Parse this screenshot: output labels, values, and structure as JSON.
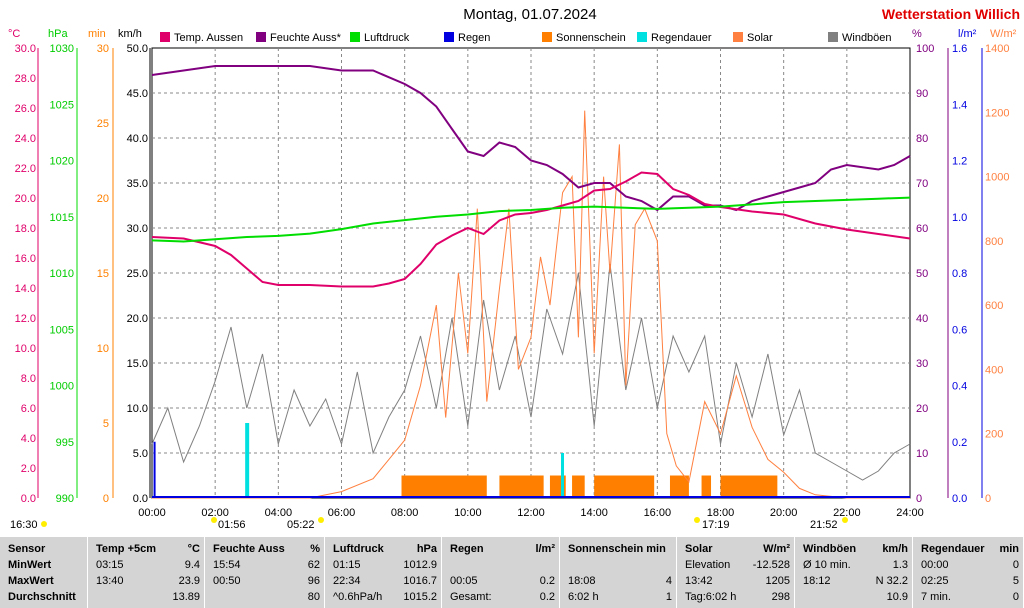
{
  "title": "Montag, 01.07.2024",
  "brand": "Wetterstation Willich",
  "units": {
    "temp": "°C",
    "press": "hPa",
    "min": "min",
    "wind": "km/h",
    "pct": "%",
    "rain": "l/m²",
    "solar": "W/m²"
  },
  "legend": [
    {
      "label": "Temp. Aussen",
      "color": "#e0006a"
    },
    {
      "label": "Feuchte Auss*",
      "color": "#800080"
    },
    {
      "label": "Luftdruck",
      "color": "#00dd00"
    },
    {
      "label": "Regen",
      "color": "#0000e0"
    },
    {
      "label": "Sonnenschein",
      "color": "#ff8000"
    },
    {
      "label": "Regendauer",
      "color": "#00e0e0"
    },
    {
      "label": "Solar",
      "color": "#ff8040"
    },
    {
      "label": "Windböen",
      "color": "#808080"
    }
  ],
  "axes": {
    "temp": [
      "30.0",
      "28.0",
      "26.0",
      "24.0",
      "22.0",
      "20.0",
      "18.0",
      "16.0",
      "14.0",
      "12.0",
      "10.0",
      "8.0",
      "6.0",
      "4.0",
      "2.0",
      "0.0"
    ],
    "press": [
      "1030",
      "1025",
      "1020",
      "1015",
      "1010",
      "1005",
      "1000",
      "995",
      "990"
    ],
    "min": [
      "30",
      "25",
      "20",
      "15",
      "10",
      "5",
      "0"
    ],
    "wind": [
      "50.0",
      "45.0",
      "40.0",
      "35.0",
      "30.0",
      "25.0",
      "20.0",
      "15.0",
      "10.0",
      "5.0",
      "0.0"
    ],
    "pct": [
      "100",
      "90",
      "80",
      "70",
      "60",
      "50",
      "40",
      "30",
      "20",
      "10",
      "0"
    ],
    "rain": [
      "1.6",
      "1.4",
      "1.2",
      "1.0",
      "0.8",
      "0.6",
      "0.4",
      "0.2",
      "0.0"
    ],
    "solar": [
      "1400",
      "1200",
      "1000",
      "800",
      "600",
      "400",
      "200",
      "0"
    ],
    "x": [
      "00:00",
      "02:00",
      "04:00",
      "06:00",
      "08:00",
      "10:00",
      "12:00",
      "14:00",
      "16:00",
      "18:00",
      "20:00",
      "22:00",
      "24:00"
    ]
  },
  "markers": {
    "left": "16:30",
    "m1": "01:56",
    "m2": "05:22",
    "m3": "17:19",
    "m4": "21:52"
  },
  "chart_data": {
    "type": "line",
    "x_range": [
      0,
      24
    ],
    "series": [
      {
        "name": "Temp. Aussen",
        "unit": "°C",
        "color": "#e0006a",
        "x": [
          0,
          1,
          2,
          2.5,
          3,
          3.5,
          4,
          5,
          6,
          7,
          7.5,
          8,
          8.5,
          9,
          9.5,
          10,
          10.5,
          11,
          11.5,
          12,
          12.5,
          13,
          13.5,
          14,
          14.5,
          15,
          15.5,
          16,
          16.5,
          17,
          17.5,
          18,
          19,
          20,
          21,
          22,
          23,
          24
        ],
        "y": [
          17.4,
          17.3,
          16.8,
          16.2,
          15.3,
          14.4,
          14.2,
          14.2,
          14.1,
          14.1,
          14.3,
          14.6,
          15.6,
          16.9,
          17.5,
          18.0,
          17.6,
          18.5,
          18.9,
          19.0,
          19.2,
          19.5,
          19.8,
          20.5,
          20.6,
          21.1,
          21.7,
          21.6,
          20.6,
          20.2,
          19.6,
          19.4,
          19.1,
          18.9,
          18.3,
          17.9,
          17.6,
          17.3
        ]
      },
      {
        "name": "Feuchte Auss*",
        "unit": "%",
        "color": "#800080",
        "x": [
          0,
          1,
          2,
          3,
          4,
          5,
          6,
          7,
          8,
          8.5,
          9,
          9.5,
          10,
          10.5,
          11,
          11.5,
          12,
          12.5,
          13,
          13.5,
          14,
          14.5,
          15,
          15.5,
          16,
          16.5,
          17,
          17.5,
          18,
          18.5,
          19,
          20,
          20.5,
          21,
          21.5,
          22,
          23,
          23.5,
          24
        ],
        "y": [
          94,
          95,
          96,
          96,
          96,
          96,
          95,
          95,
          92,
          90,
          87,
          82,
          77,
          76,
          79,
          78,
          75,
          74,
          72,
          69,
          70,
          70,
          67,
          66,
          64,
          67,
          67,
          65,
          65,
          64,
          66,
          68,
          69,
          70,
          73,
          74,
          73,
          74,
          76
        ]
      },
      {
        "name": "Luftdruck",
        "unit": "hPa",
        "color": "#00dd00",
        "x": [
          0,
          1,
          2,
          3,
          4,
          5,
          6,
          7,
          8,
          9,
          10,
          11,
          12,
          13,
          14,
          15,
          16,
          17,
          18,
          19,
          20,
          21,
          22,
          23,
          24
        ],
        "y": [
          1012.9,
          1012.8,
          1013.0,
          1013.2,
          1013.3,
          1013.5,
          1013.9,
          1014.4,
          1014.7,
          1015.0,
          1015.2,
          1015.5,
          1015.6,
          1015.8,
          1015.9,
          1015.8,
          1015.7,
          1015.8,
          1015.9,
          1016.1,
          1016.3,
          1016.4,
          1016.5,
          1016.6,
          1016.7
        ]
      },
      {
        "name": "Solar",
        "unit": "W/m²",
        "color": "#ff8040",
        "x": [
          0,
          5,
          6,
          7,
          7.5,
          8,
          8.5,
          9,
          9.3,
          9.7,
          10,
          10.3,
          10.6,
          11,
          11.3,
          11.6,
          12,
          12.3,
          12.6,
          13,
          13.3,
          13.5,
          13.7,
          14,
          14.3,
          14.5,
          14.8,
          15,
          15.3,
          15.6,
          16,
          16.3,
          16.6,
          17,
          17.5,
          18,
          18.5,
          19,
          19.5,
          20,
          20.5,
          21,
          22,
          24
        ],
        "y": [
          0,
          0,
          20,
          60,
          120,
          180,
          350,
          600,
          250,
          700,
          450,
          900,
          300,
          650,
          900,
          400,
          500,
          750,
          600,
          950,
          1000,
          500,
          1205,
          450,
          1000,
          700,
          1100,
          350,
          850,
          900,
          800,
          200,
          100,
          50,
          300,
          200,
          380,
          220,
          120,
          80,
          30,
          10,
          0,
          0
        ]
      },
      {
        "name": "Windböen",
        "unit": "km/h",
        "color": "#808080",
        "x": [
          0,
          0.5,
          1,
          1.5,
          2,
          2.5,
          3,
          3.5,
          4,
          4.5,
          5,
          5.5,
          6,
          6.5,
          7,
          7.5,
          8,
          8.5,
          9,
          9.5,
          10,
          10.5,
          11,
          11.5,
          12,
          12.5,
          13,
          13.5,
          14,
          14.5,
          15,
          15.5,
          16,
          16.5,
          17,
          17.5,
          18,
          18.5,
          19,
          19.5,
          20,
          20.5,
          21,
          21.5,
          22,
          22.5,
          23,
          23.5,
          24
        ],
        "y": [
          6,
          10,
          4,
          8,
          13,
          19,
          10,
          16,
          6,
          12,
          8,
          11,
          6,
          14,
          5,
          9,
          12,
          18,
          10,
          20,
          8,
          22,
          12,
          18,
          9,
          21,
          16,
          25,
          8,
          26,
          12,
          20,
          10,
          18,
          14,
          18,
          6,
          15,
          9,
          16,
          7,
          12,
          5,
          4,
          3,
          2,
          3,
          5,
          6
        ]
      },
      {
        "name": "Sonnenschein",
        "unit": "min",
        "color": "#ff8000",
        "bars": [
          [
            7.9,
            10.6
          ],
          [
            11,
            12.4
          ],
          [
            12.6,
            13.1
          ],
          [
            13.3,
            13.7
          ],
          [
            14,
            15.9
          ],
          [
            16.4,
            17.0
          ],
          [
            17.4,
            17.7
          ],
          [
            18,
            19.8
          ]
        ],
        "value": 1.5
      }
    ]
  },
  "footer": [
    {
      "name": "sensor",
      "header": [
        "Sensor",
        ""
      ],
      "rows": [
        [
          "MinWert",
          ""
        ],
        [
          "MaxWert",
          ""
        ],
        [
          "Durchschnitt",
          ""
        ]
      ]
    },
    {
      "name": "temp",
      "header": [
        "Temp +5cm",
        "°C"
      ],
      "rows": [
        [
          "03:15",
          "9.4"
        ],
        [
          "13:40",
          "23.9"
        ],
        [
          "",
          "13.89"
        ]
      ]
    },
    {
      "name": "humidity",
      "header": [
        "Feuchte Auss",
        "%"
      ],
      "rows": [
        [
          "15:54",
          "62"
        ],
        [
          "00:50",
          "96"
        ],
        [
          "",
          "80"
        ]
      ]
    },
    {
      "name": "pressure",
      "header": [
        "Luftdruck",
        "hPa"
      ],
      "rows": [
        [
          "01:15",
          "1012.9"
        ],
        [
          "22:34",
          "1016.7"
        ],
        [
          "^0.6hPa/h",
          "1015.2"
        ]
      ]
    },
    {
      "name": "rain",
      "header": [
        "Regen",
        "l/m²"
      ],
      "rows": [
        [
          "",
          ""
        ],
        [
          "00:05",
          "0.2"
        ],
        [
          "Gesamt:",
          "0.2"
        ]
      ]
    },
    {
      "name": "sunshine",
      "header": [
        "Sonnenschein min",
        ""
      ],
      "rows": [
        [
          "",
          ""
        ],
        [
          "18:08",
          "4"
        ],
        [
          "6:02 h",
          "1"
        ]
      ]
    },
    {
      "name": "solar",
      "header": [
        "Solar",
        "W/m²"
      ],
      "rows": [
        [
          "Elevation",
          "-12.528"
        ],
        [
          "13:42",
          "1205"
        ],
        [
          "Tag:6:02 h",
          "298"
        ]
      ]
    },
    {
      "name": "wind",
      "header": [
        "Windböen",
        "km/h"
      ],
      "rows": [
        [
          "Ø 10 min.",
          "1.3"
        ],
        [
          "18:12",
          "N 32.2"
        ],
        [
          "",
          "10.9"
        ]
      ]
    },
    {
      "name": "raindur",
      "header": [
        "Regendauer",
        "min"
      ],
      "rows": [
        [
          "00:00",
          "0"
        ],
        [
          "02:25",
          "5"
        ],
        [
          "7 min.",
          "0"
        ]
      ]
    }
  ]
}
